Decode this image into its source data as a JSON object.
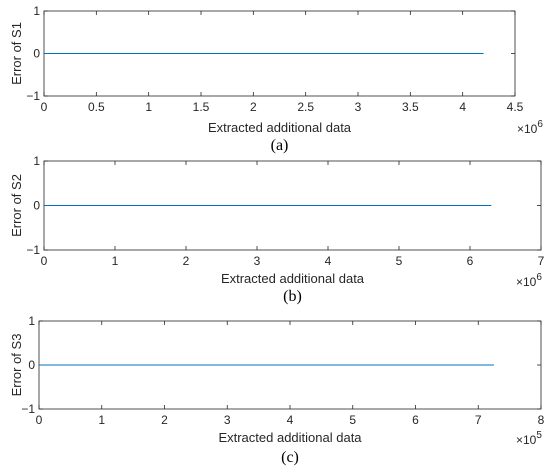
{
  "chart_data": [
    {
      "type": "line",
      "caption": "(a)",
      "xlabel": "Extracted additional data",
      "ylabel": "Error of S1",
      "x_multiplier": "10^6",
      "x_multiplier_base": "×10",
      "x_multiplier_exp": "6",
      "xlim": [
        0,
        4.5
      ],
      "ylim": [
        -1,
        1
      ],
      "xticks": [
        0,
        0.5,
        1,
        1.5,
        2,
        2.5,
        3,
        3.5,
        4,
        4.5
      ],
      "xtick_labels": [
        "0",
        "0.5",
        "1",
        "1.5",
        "2",
        "2.5",
        "3",
        "3.5",
        "4",
        "4.5"
      ],
      "yticks": [
        -1,
        0,
        1
      ],
      "ytick_labels": [
        "−1",
        "0",
        "1"
      ],
      "series": [
        {
          "x": [
            0,
            4.2
          ],
          "y": [
            0,
            0
          ],
          "color": "#0072BD"
        }
      ]
    },
    {
      "type": "line",
      "caption": "(b)",
      "xlabel": "Extracted additional data",
      "ylabel": "Error of S2",
      "x_multiplier": "10^6",
      "x_multiplier_base": "×10",
      "x_multiplier_exp": "6",
      "xlim": [
        0,
        7
      ],
      "ylim": [
        -1,
        1
      ],
      "xticks": [
        0,
        1,
        2,
        3,
        4,
        5,
        6,
        7
      ],
      "xtick_labels": [
        "0",
        "1",
        "2",
        "3",
        "4",
        "5",
        "6",
        "7"
      ],
      "yticks": [
        -1,
        0,
        1
      ],
      "ytick_labels": [
        "−1",
        "0",
        "1"
      ],
      "series": [
        {
          "x": [
            0,
            6.3
          ],
          "y": [
            0,
            0
          ],
          "color": "#0072BD"
        }
      ]
    },
    {
      "type": "line",
      "caption": "(c)",
      "xlabel": "Extracted additional data",
      "ylabel": "Error of S3",
      "x_multiplier": "10^5",
      "x_multiplier_base": "×10",
      "x_multiplier_exp": "5",
      "xlim": [
        0,
        8
      ],
      "ylim": [
        -1,
        1
      ],
      "xticks": [
        0,
        1,
        2,
        3,
        4,
        5,
        6,
        7,
        8
      ],
      "xtick_labels": [
        "0",
        "1",
        "2",
        "3",
        "4",
        "5",
        "6",
        "7",
        "8"
      ],
      "yticks": [
        -1,
        0,
        1
      ],
      "ytick_labels": [
        "−1",
        "0",
        "1"
      ],
      "series": [
        {
          "x": [
            0,
            7.25
          ],
          "y": [
            0,
            0
          ],
          "color": "#0072BD"
        }
      ]
    }
  ]
}
